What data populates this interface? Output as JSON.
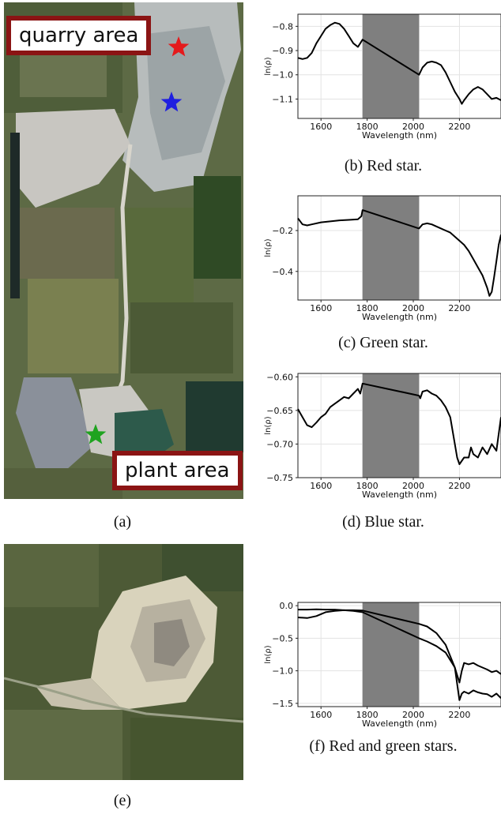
{
  "figure": {
    "panel_a": {
      "caption": "(a)",
      "labels": {
        "quarry": "quarry area",
        "plant": "plant area"
      },
      "stars": [
        {
          "name": "red-star",
          "color": "#e41a1c"
        },
        {
          "name": "blue-star",
          "color": "#1f1fe0"
        },
        {
          "name": "green-star",
          "color": "#1fa31f"
        }
      ]
    },
    "panel_e": {
      "caption": "(e)",
      "stars": [
        {
          "name": "green-star",
          "color": "#1fa31f"
        },
        {
          "name": "red-star",
          "color": "#e41a1c"
        }
      ]
    },
    "captions": {
      "b": "(b) Red star.",
      "c": "(c) Green star.",
      "d": "(d) Blue star.",
      "f": "(f) Red and green stars."
    }
  },
  "chart_data": [
    {
      "id": "b",
      "type": "line",
      "xlabel": "Wavelength (nm)",
      "ylabel": "ln(ρ)",
      "xlim": [
        1500,
        2380
      ],
      "ylim": [
        -1.18,
        -0.75
      ],
      "xticks": [
        1600,
        1800,
        2000,
        2200
      ],
      "yticks": [
        -0.8,
        -0.9,
        -1.0,
        -1.1
      ],
      "ytick_labels": [
        "−0.8",
        "−0.9",
        "−1.0",
        "−1.1"
      ],
      "shaded_band": [
        1780,
        2025
      ],
      "series": [
        {
          "x": [
            1500,
            1520,
            1540,
            1560,
            1580,
            1600,
            1620,
            1640,
            1660,
            1680,
            1700,
            1720,
            1740,
            1760,
            1770,
            1780,
            2025,
            2040,
            2060,
            2080,
            2100,
            2120,
            2140,
            2160,
            2180,
            2200,
            2210,
            2220,
            2240,
            2260,
            2280,
            2300,
            2320,
            2340,
            2360,
            2380
          ],
          "y": [
            -0.93,
            -0.935,
            -0.93,
            -0.91,
            -0.87,
            -0.84,
            -0.81,
            -0.795,
            -0.785,
            -0.79,
            -0.81,
            -0.84,
            -0.87,
            -0.885,
            -0.87,
            -0.855,
            -1.0,
            -0.97,
            -0.95,
            -0.945,
            -0.95,
            -0.96,
            -0.99,
            -1.03,
            -1.07,
            -1.1,
            -1.12,
            -1.105,
            -1.08,
            -1.06,
            -1.05,
            -1.06,
            -1.08,
            -1.1,
            -1.095,
            -1.105
          ]
        }
      ]
    },
    {
      "id": "c",
      "type": "line",
      "xlabel": "Wavelength (nm)",
      "ylabel": "ln(ρ)",
      "xlim": [
        1500,
        2380
      ],
      "ylim": [
        -0.54,
        -0.03
      ],
      "xticks": [
        1600,
        1800,
        2000,
        2200
      ],
      "yticks": [
        -0.2,
        -0.4
      ],
      "ytick_labels": [
        "−0.2",
        "−0.4"
      ],
      "shaded_band": [
        1780,
        2025
      ],
      "series": [
        {
          "x": [
            1500,
            1520,
            1540,
            1560,
            1600,
            1640,
            1680,
            1720,
            1760,
            1775,
            1780,
            2025,
            2040,
            2060,
            2080,
            2100,
            2120,
            2140,
            2160,
            2180,
            2200,
            2220,
            2240,
            2260,
            2280,
            2300,
            2320,
            2330,
            2340,
            2350,
            2360,
            2370,
            2380
          ],
          "y": [
            -0.14,
            -0.17,
            -0.175,
            -0.17,
            -0.16,
            -0.155,
            -0.15,
            -0.148,
            -0.145,
            -0.13,
            -0.1,
            -0.19,
            -0.17,
            -0.165,
            -0.17,
            -0.18,
            -0.19,
            -0.2,
            -0.21,
            -0.23,
            -0.25,
            -0.27,
            -0.3,
            -0.34,
            -0.38,
            -0.42,
            -0.48,
            -0.52,
            -0.5,
            -0.43,
            -0.35,
            -0.27,
            -0.22
          ]
        }
      ]
    },
    {
      "id": "d",
      "type": "line",
      "xlabel": "Wavelength (nm)",
      "ylabel": "ln(ρ)",
      "xlim": [
        1500,
        2380
      ],
      "ylim": [
        -0.75,
        -0.595
      ],
      "xticks": [
        1600,
        1800,
        2000,
        2200
      ],
      "yticks": [
        -0.6,
        -0.65,
        -0.7,
        -0.75
      ],
      "ytick_labels": [
        "−0.60",
        "−0.65",
        "−0.70",
        "−0.75"
      ],
      "shaded_band": [
        1780,
        2025
      ],
      "series": [
        {
          "x": [
            1500,
            1520,
            1540,
            1560,
            1580,
            1600,
            1620,
            1640,
            1660,
            1680,
            1700,
            1720,
            1740,
            1760,
            1770,
            1780,
            2025,
            2030,
            2040,
            2060,
            2080,
            2100,
            2120,
            2140,
            2160,
            2170,
            2180,
            2190,
            2200,
            2220,
            2240,
            2250,
            2260,
            2280,
            2300,
            2320,
            2340,
            2360,
            2380
          ],
          "y": [
            -0.648,
            -0.66,
            -0.672,
            -0.675,
            -0.668,
            -0.66,
            -0.655,
            -0.645,
            -0.64,
            -0.635,
            -0.63,
            -0.632,
            -0.625,
            -0.618,
            -0.625,
            -0.61,
            -0.628,
            -0.632,
            -0.622,
            -0.62,
            -0.625,
            -0.628,
            -0.635,
            -0.645,
            -0.66,
            -0.68,
            -0.7,
            -0.72,
            -0.73,
            -0.72,
            -0.72,
            -0.705,
            -0.715,
            -0.72,
            -0.705,
            -0.715,
            -0.7,
            -0.71,
            -0.66
          ]
        }
      ]
    },
    {
      "id": "f",
      "type": "line",
      "xlabel": "Wavelength (nm)",
      "ylabel": "ln(ρ)",
      "xlim": [
        1500,
        2380
      ],
      "ylim": [
        -1.55,
        0.05
      ],
      "xticks": [
        1600,
        1800,
        2000,
        2200
      ],
      "yticks": [
        0.0,
        -0.5,
        -1.0,
        -1.5
      ],
      "ytick_labels": [
        "0.0",
        "−0.5",
        "−1.0",
        "−1.5"
      ],
      "shaded_band": [
        1780,
        2025
      ],
      "series": [
        {
          "x": [
            1500,
            1540,
            1580,
            1620,
            1660,
            1700,
            1740,
            1780,
            2025,
            2060,
            2100,
            2140,
            2180,
            2200,
            2210,
            2220,
            2240,
            2260,
            2280,
            2300,
            2320,
            2340,
            2360,
            2380
          ],
          "y": [
            -0.18,
            -0.19,
            -0.16,
            -0.1,
            -0.08,
            -0.07,
            -0.08,
            -0.1,
            -0.5,
            -0.55,
            -0.62,
            -0.72,
            -0.95,
            -1.18,
            -1.0,
            -0.88,
            -0.9,
            -0.88,
            -0.92,
            -0.95,
            -0.98,
            -1.02,
            -1.0,
            -1.05
          ]
        },
        {
          "x": [
            1500,
            1540,
            1580,
            1620,
            1660,
            1700,
            1740,
            1780,
            2025,
            2060,
            2100,
            2140,
            2180,
            2200,
            2210,
            2220,
            2240,
            2260,
            2280,
            2300,
            2320,
            2340,
            2360,
            2380
          ],
          "y": [
            -0.06,
            -0.06,
            -0.055,
            -0.06,
            -0.06,
            -0.07,
            -0.07,
            -0.075,
            -0.28,
            -0.32,
            -0.42,
            -0.6,
            -0.95,
            -1.45,
            -1.35,
            -1.32,
            -1.35,
            -1.3,
            -1.33,
            -1.35,
            -1.36,
            -1.4,
            -1.35,
            -1.42
          ]
        }
      ]
    }
  ]
}
